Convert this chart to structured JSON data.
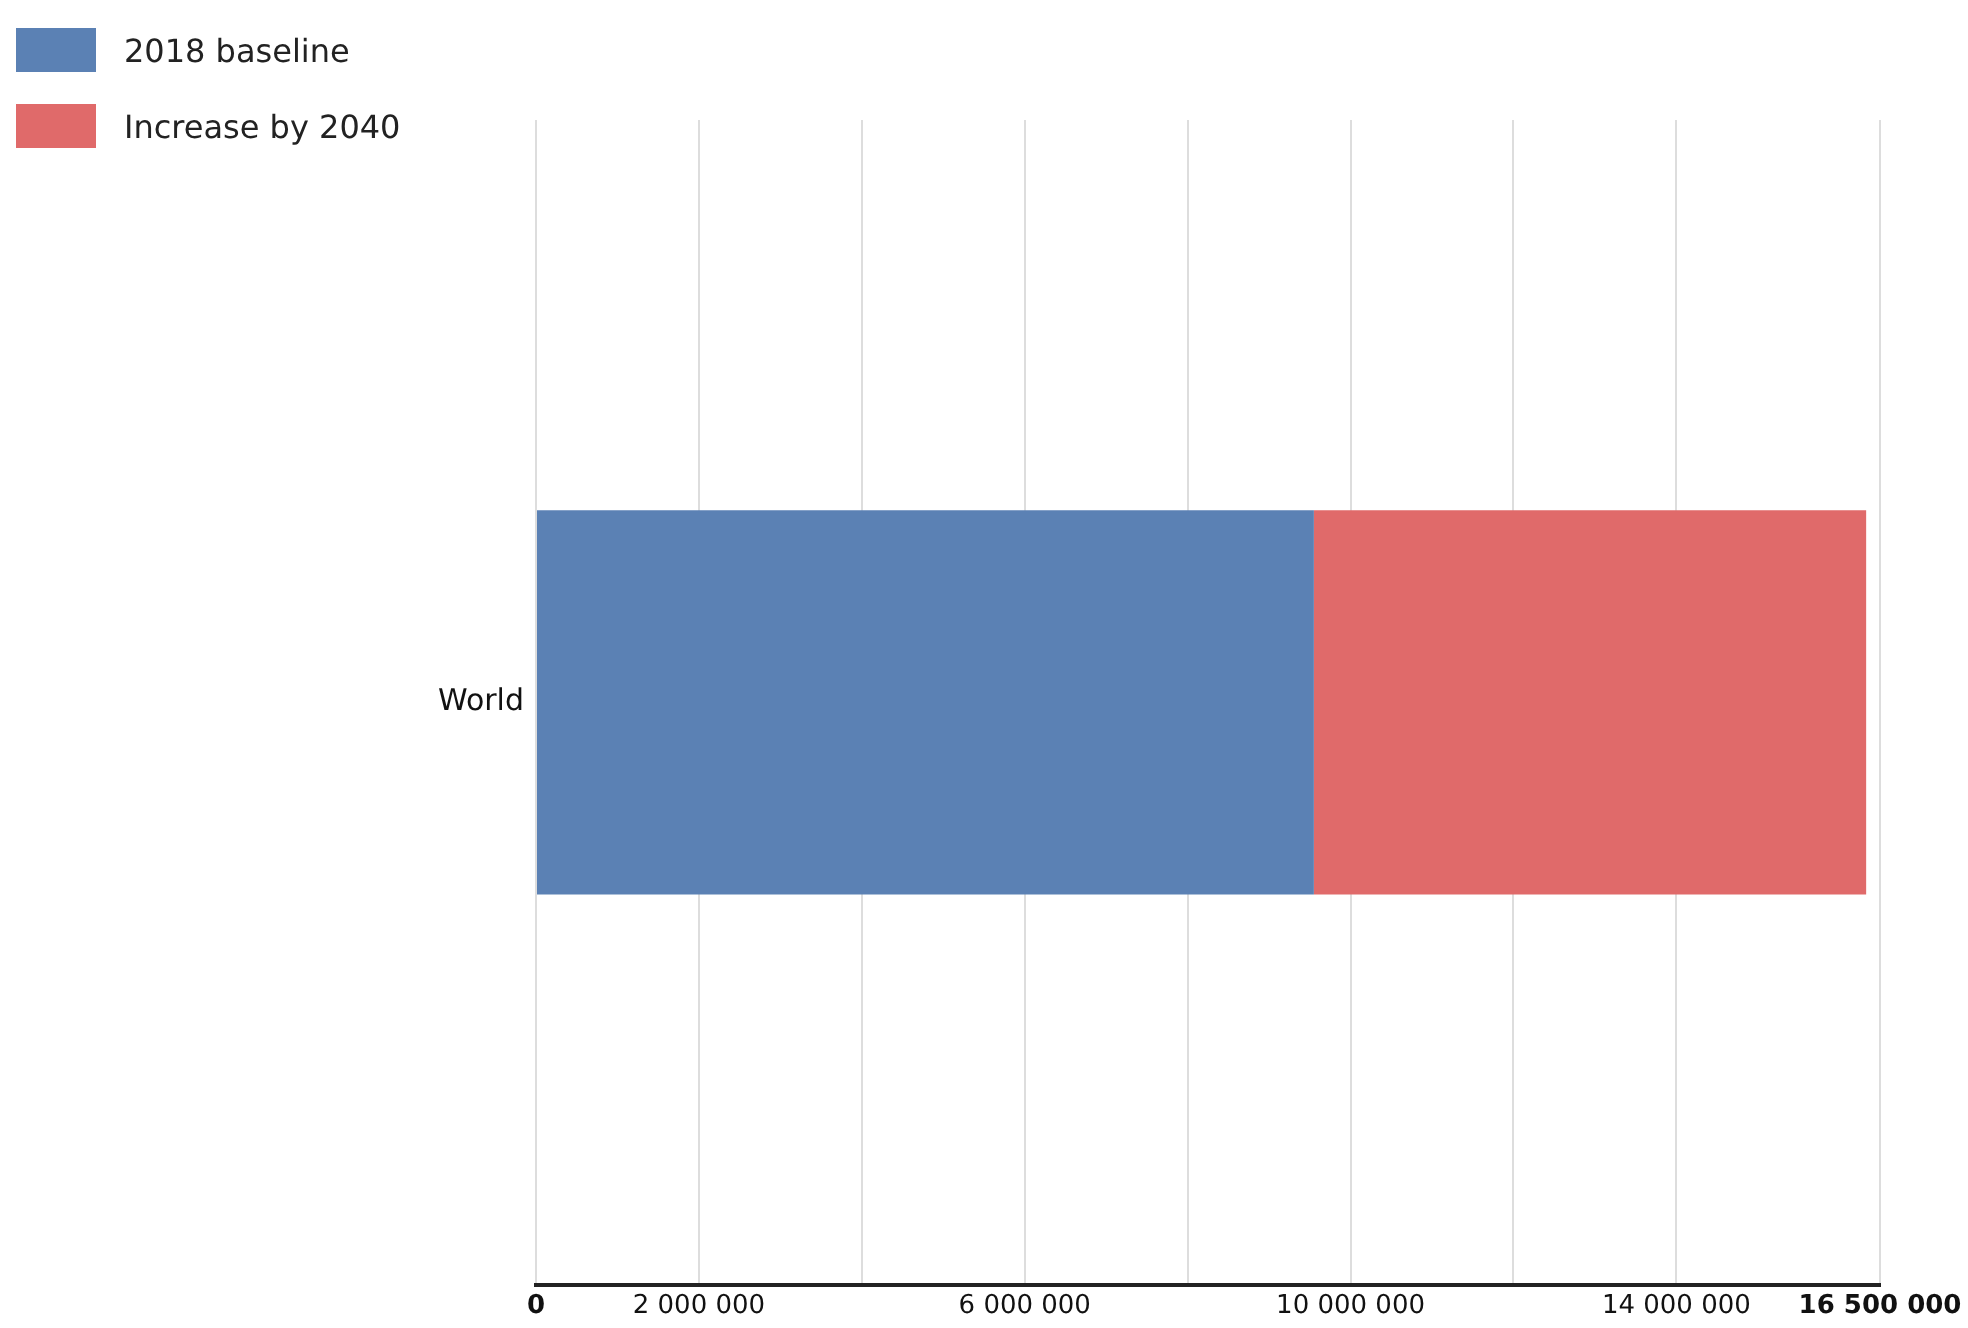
{
  "chart_data": {
    "type": "bar",
    "orientation": "horizontal",
    "stacked": true,
    "categories": [
      "World"
    ],
    "series": [
      {
        "name": "2018 baseline",
        "color": "#5b81b4",
        "values": [
          9550000
        ]
      },
      {
        "name": "Increase by 2040",
        "color": "#e06a6a",
        "values": [
          6780000
        ]
      }
    ],
    "xlim": [
      0,
      16500000
    ],
    "xticks": [
      {
        "value": 0,
        "label": "0"
      },
      {
        "value": 2000000,
        "label": "2 000 000"
      },
      {
        "value": 4000000,
        "label": null
      },
      {
        "value": 6000000,
        "label": "6 000 000"
      },
      {
        "value": 8000000,
        "label": null
      },
      {
        "value": 10000000,
        "label": "10 000 000"
      },
      {
        "value": 12000000,
        "label": null
      },
      {
        "value": 14000000,
        "label": "14 000 000"
      },
      {
        "value": 16500000,
        "label": "16 500 000"
      }
    ],
    "grid": "x",
    "legend": "top left"
  }
}
